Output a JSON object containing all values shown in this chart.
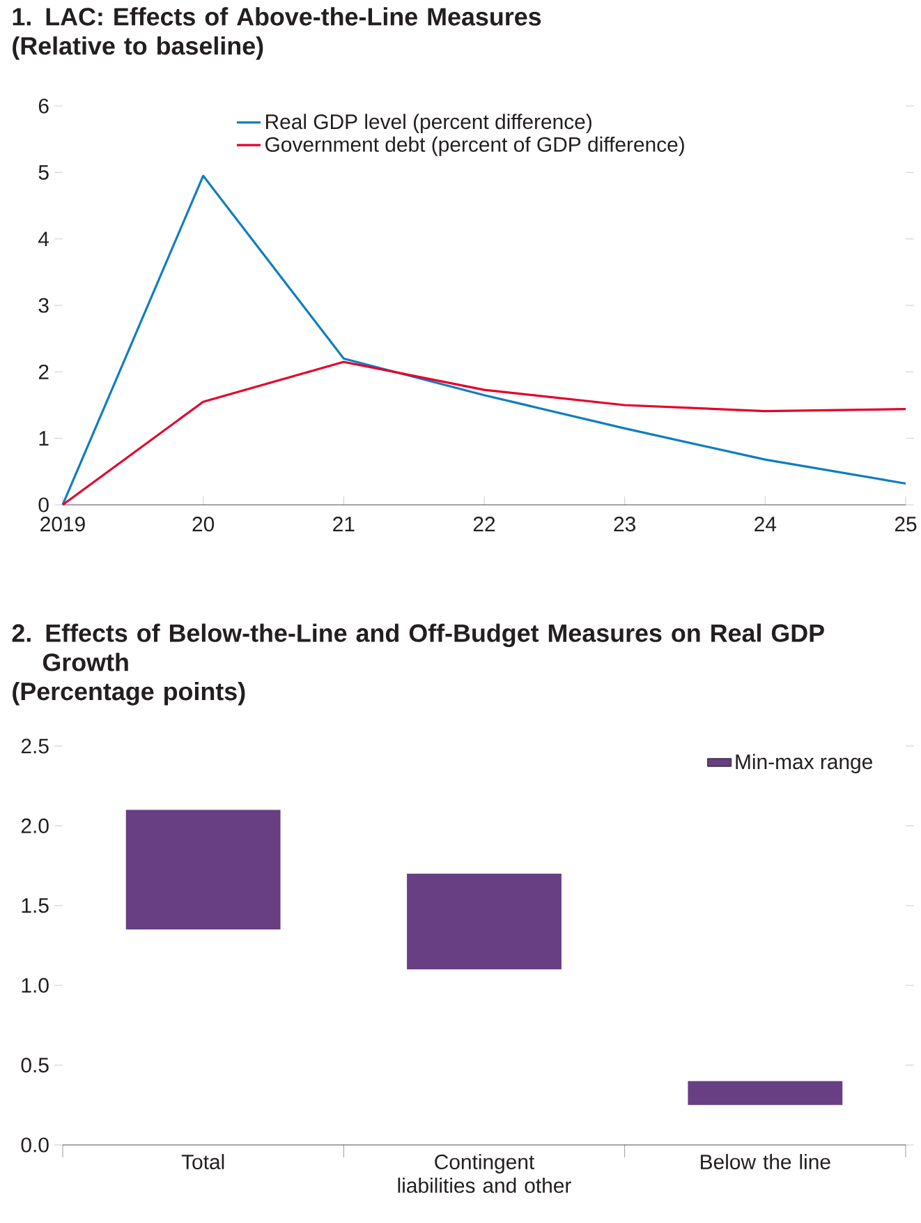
{
  "chart_data": [
    {
      "type": "line",
      "title": "1. LAC: Effects of Above-the-Line Measures",
      "subtitle": "(Relative to baseline)",
      "x": [
        2019,
        2020,
        2021,
        2022,
        2023,
        2024,
        2025
      ],
      "series": [
        {
          "name": "Real GDP level (percent difference)",
          "color": "#0f7dc0",
          "values": [
            0,
            4.95,
            2.2,
            1.65,
            1.15,
            0.68,
            0.32
          ]
        },
        {
          "name": "Government debt (percent of GDP difference)",
          "color": "#e4002b",
          "values": [
            0,
            1.55,
            2.15,
            1.73,
            1.5,
            1.41,
            1.44
          ]
        }
      ],
      "xlim": [
        2019,
        2025
      ],
      "xticks": [
        {
          "value": 2019,
          "label": "2019"
        },
        {
          "value": 2020,
          "label": "20"
        },
        {
          "value": 2021,
          "label": "21"
        },
        {
          "value": 2022,
          "label": "22"
        },
        {
          "value": 2023,
          "label": "23"
        },
        {
          "value": 2024,
          "label": "24"
        },
        {
          "value": 2025,
          "label": "25"
        }
      ],
      "ylim": [
        0,
        6
      ],
      "yticks": [
        0,
        1,
        2,
        3,
        4,
        5,
        6
      ],
      "legend": "top"
    },
    {
      "type": "bar",
      "title": "2. Effects of Below-the-Line and Off-Budget Measures on Real GDP Growth",
      "subtitle": "(Percentage points)",
      "categories": [
        "Total",
        "Contingent liabilities and other",
        "Below the line"
      ],
      "series": [
        {
          "name": "Min-max range",
          "color": "#673f82",
          "values": [
            0.75,
            0.6,
            0.15
          ],
          "base": [
            1.35,
            1.1,
            0.25
          ]
        }
      ],
      "ylim": [
        0,
        2.5
      ],
      "yticks": [
        {
          "value": 0,
          "label": "0.0"
        },
        0.5,
        {
          "value": 1,
          "label": "1.0"
        },
        1.5,
        {
          "value": 2,
          "label": "2.0"
        },
        2.5
      ],
      "legend": "top right"
    }
  ]
}
